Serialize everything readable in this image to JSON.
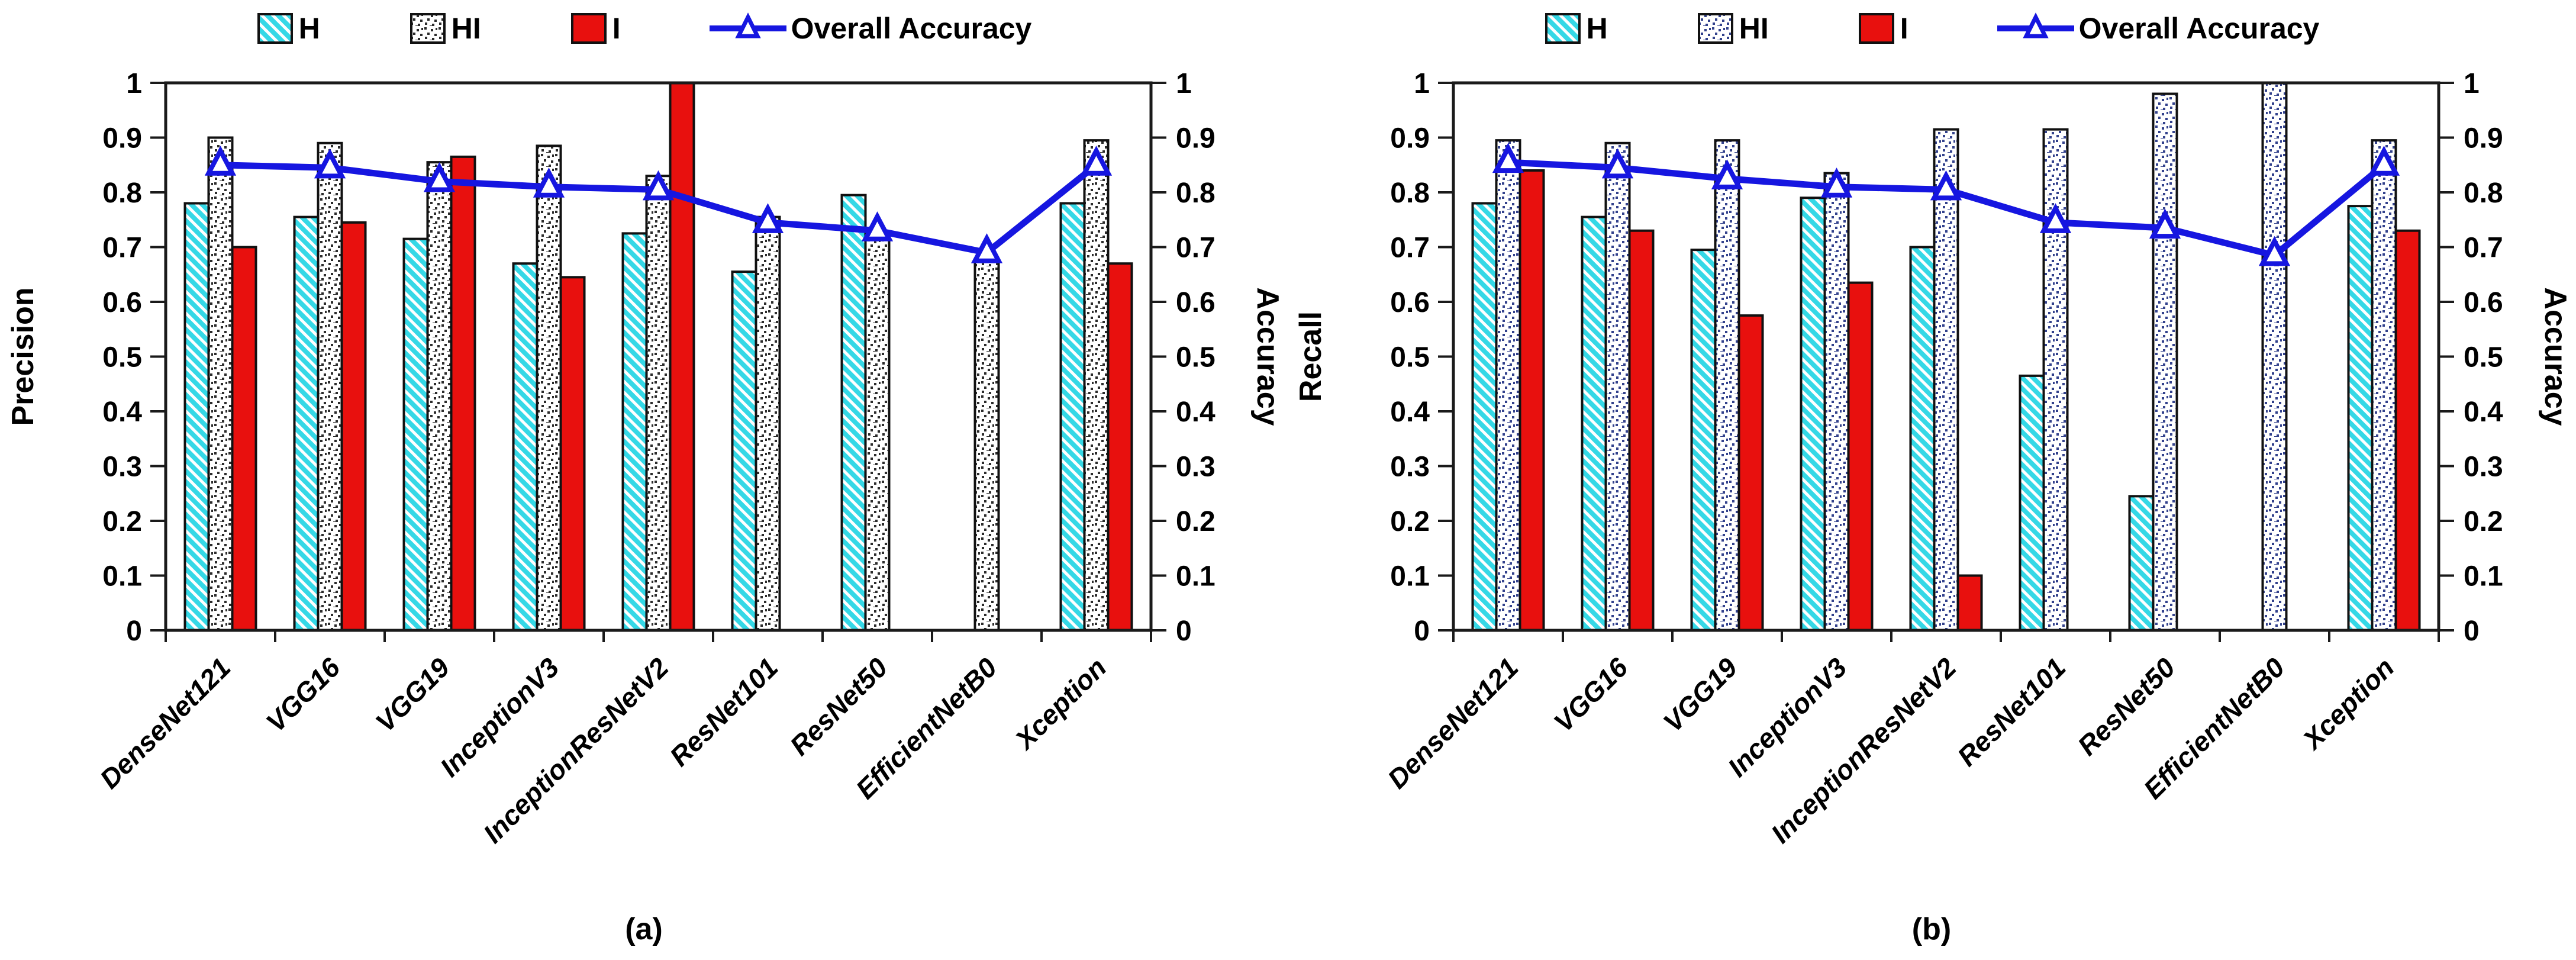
{
  "figure": {
    "captions": {
      "a": "(a)",
      "b": "(b)"
    },
    "legend": {
      "items": [
        {
          "key": "H",
          "label": "H",
          "swatch": "h-stripes-icon"
        },
        {
          "key": "HI",
          "label": "HI",
          "swatch": "hi-dots-icon"
        },
        {
          "key": "I",
          "label": "I",
          "swatch": "solid-red-icon"
        },
        {
          "key": "line",
          "label": "Overall Accuracy",
          "swatch": "line-triangle-icon"
        }
      ]
    },
    "colors": {
      "h_fill": "#35d8e6",
      "h_stripe": "#ffffff",
      "i_fill": "#e8100e",
      "line": "#1616e0",
      "axis": "#1a1a1a",
      "text": "#000000",
      "bar_border": "#111111"
    }
  },
  "chart_data": [
    {
      "type": "bar+line",
      "caption": "(a)",
      "ylabel_left": "Precision",
      "ylabel_right": "Accuracy",
      "ylim": [
        0,
        1
      ],
      "grid": false,
      "legend_position": "top",
      "hi_dot_color": "#2b2b2b",
      "yticks": [
        {
          "v": 0,
          "label": "0"
        },
        {
          "v": 0.1,
          "label": "0.1"
        },
        {
          "v": 0.2,
          "label": "0.2"
        },
        {
          "v": 0.3,
          "label": "0.3"
        },
        {
          "v": 0.4,
          "label": "0.4"
        },
        {
          "v": 0.5,
          "label": "0.5"
        },
        {
          "v": 0.6,
          "label": "0.6"
        },
        {
          "v": 0.7,
          "label": "0.7"
        },
        {
          "v": 0.8,
          "label": "0.8"
        },
        {
          "v": 0.9,
          "label": "0.9"
        },
        {
          "v": 1,
          "label": "1"
        }
      ],
      "categories": [
        "DenseNet121",
        "VGG16",
        "VGG19",
        "InceptionV3",
        "InceptionResNetV2",
        "ResNet101",
        "ResNet50",
        "EfficientNetB0",
        "Xception"
      ],
      "series": [
        {
          "name": "H",
          "type": "bar",
          "pattern": "h-stripes",
          "values": [
            0.78,
            0.755,
            0.715,
            0.67,
            0.725,
            0.655,
            0.795,
            null,
            0.78
          ]
        },
        {
          "name": "HI",
          "type": "bar",
          "pattern": "hi-dots",
          "values": [
            0.9,
            0.89,
            0.855,
            0.885,
            0.83,
            0.755,
            0.725,
            0.675,
            0.895
          ]
        },
        {
          "name": "I",
          "type": "bar",
          "pattern": "solid",
          "values": [
            0.7,
            0.745,
            0.865,
            0.645,
            1.0,
            null,
            null,
            null,
            0.67
          ]
        },
        {
          "name": "Overall Accuracy",
          "type": "line",
          "values": [
            0.85,
            0.845,
            0.82,
            0.81,
            0.805,
            0.745,
            0.73,
            0.69,
            0.85
          ]
        }
      ]
    },
    {
      "type": "bar+line",
      "caption": "(b)",
      "ylabel_left": "Recall",
      "ylabel_right": "Accuracy",
      "ylim": [
        0,
        1
      ],
      "grid": false,
      "legend_position": "top",
      "hi_dot_color": "#32418c",
      "yticks": [
        {
          "v": 0,
          "label": "0"
        },
        {
          "v": 0.1,
          "label": "0.1"
        },
        {
          "v": 0.2,
          "label": "0.2"
        },
        {
          "v": 0.3,
          "label": "0.3"
        },
        {
          "v": 0.4,
          "label": "0.4"
        },
        {
          "v": 0.5,
          "label": "0.5"
        },
        {
          "v": 0.6,
          "label": "0.6"
        },
        {
          "v": 0.7,
          "label": "0.7"
        },
        {
          "v": 0.8,
          "label": "0.8"
        },
        {
          "v": 0.9,
          "label": "0.9"
        },
        {
          "v": 1,
          "label": "1"
        }
      ],
      "categories": [
        "DenseNet121",
        "VGG16",
        "VGG19",
        "InceptionV3",
        "InceptionResNetV2",
        "ResNet101",
        "ResNet50",
        "EfficientNetB0",
        "Xception"
      ],
      "series": [
        {
          "name": "H",
          "type": "bar",
          "pattern": "h-stripes",
          "values": [
            0.78,
            0.755,
            0.695,
            0.79,
            0.7,
            0.465,
            0.245,
            null,
            0.775
          ]
        },
        {
          "name": "HI",
          "type": "bar",
          "pattern": "hi-dots",
          "values": [
            0.895,
            0.89,
            0.895,
            0.835,
            0.915,
            0.915,
            0.98,
            1.0,
            0.895
          ]
        },
        {
          "name": "I",
          "type": "bar",
          "pattern": "solid",
          "values": [
            0.84,
            0.73,
            0.575,
            0.635,
            0.1,
            null,
            null,
            null,
            0.73
          ]
        },
        {
          "name": "Overall Accuracy",
          "type": "line",
          "values": [
            0.855,
            0.845,
            0.825,
            0.81,
            0.805,
            0.745,
            0.735,
            0.685,
            0.85
          ]
        }
      ]
    }
  ]
}
